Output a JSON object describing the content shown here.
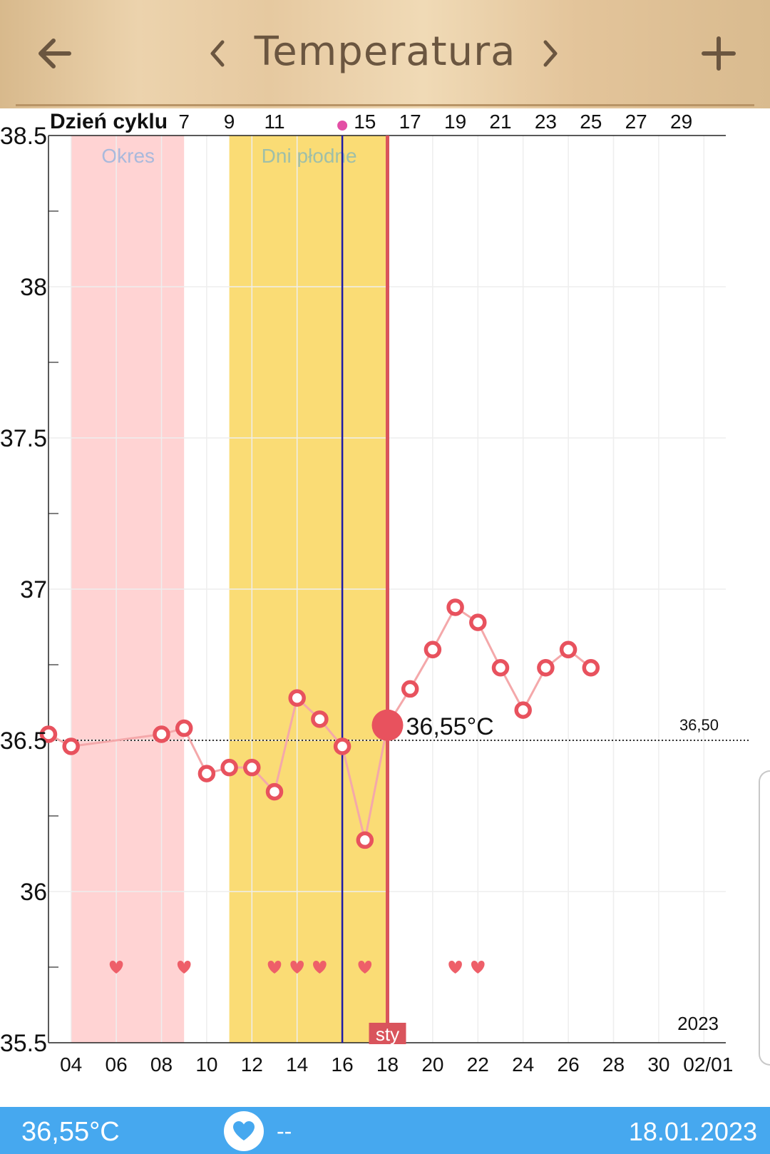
{
  "header": {
    "title": "Temperatura",
    "back_icon": "arrow-left-icon",
    "prev_icon": "chevron-left-icon",
    "next_icon": "chevron-right-icon",
    "add_icon": "plus-icon",
    "icon_color": "#6b5640"
  },
  "chart_data": {
    "type": "line",
    "title": "",
    "top_axis_label": "Dzień cyklu",
    "cycle_day_labels": [
      "7",
      "9",
      "11",
      "15",
      "17",
      "19",
      "21",
      "23",
      "25",
      "27",
      "29"
    ],
    "ovulation_marker_color": "#e34fa5",
    "y_ticks": [
      "38.5",
      "38",
      "37.5",
      "37",
      "36.5",
      "36",
      "35.5"
    ],
    "ylim": [
      35.5,
      38.5
    ],
    "x_labels": [
      "04",
      "06",
      "08",
      "10",
      "12",
      "14",
      "16",
      "18",
      "20",
      "22",
      "24",
      "26",
      "28",
      "30",
      "02/01"
    ],
    "year_label": "2023",
    "month_label": "sty",
    "bands": [
      {
        "label": "Okres",
        "color": "#ffd3d3",
        "text_color": "#a9b9dc"
      },
      {
        "label": "Dni płodne",
        "color": "#fadc75",
        "text_color": "#9fbfa8"
      }
    ],
    "series": [
      {
        "x": [
          3,
          4,
          8,
          9,
          10,
          11,
          12,
          13,
          14,
          15,
          16,
          17,
          19,
          20,
          21,
          22,
          23,
          24,
          25,
          26,
          27
        ],
        "values": [
          36.52,
          36.48,
          36.52,
          36.54,
          36.39,
          36.41,
          36.41,
          36.33,
          36.64,
          36.57,
          36.48,
          36.17,
          36.67,
          36.8,
          36.94,
          36.89,
          36.74,
          36.6,
          36.74,
          36.8,
          36.74
        ]
      }
    ],
    "selected": {
      "x": 18,
      "value": 36.55,
      "label": "36,55°C"
    },
    "coverline": {
      "value": 36.5,
      "label": "36,50"
    },
    "hearts_x": [
      6,
      9,
      13,
      14,
      15,
      17,
      21,
      22
    ],
    "line_color": "#e8525e",
    "connector_color": "#f4a8aa",
    "today_line_color": "#d9545c",
    "ovulation_line_color": "#1d1aa8"
  },
  "footer": {
    "temperature": "36,55°C",
    "heart_icon": "heart-icon",
    "intercourse_value": "--",
    "date": "18.01.2023",
    "bg_color": "#46a8ef"
  }
}
